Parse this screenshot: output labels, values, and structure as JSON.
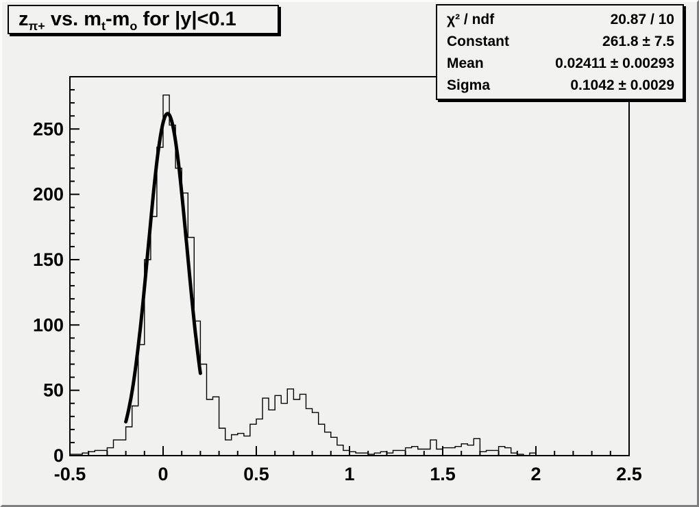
{
  "colors": {
    "canvas_bg": "#f1f1ef",
    "pave_bg": "#f2f2f0",
    "line": "#000000",
    "shadow": "#000000"
  },
  "title": {
    "plain": "z_pi+ vs. m_t-m_o for |y|<0.1",
    "segments": [
      {
        "t": "z"
      },
      {
        "t": "π+",
        "sub": true
      },
      {
        "t": " vs. m"
      },
      {
        "t": "t",
        "sub": true
      },
      {
        "t": "-m"
      },
      {
        "t": "o",
        "sub": true
      },
      {
        "t": " for |y|<0.1"
      }
    ]
  },
  "stats": {
    "rows": [
      {
        "label": "χ² / ndf",
        "value": "20.87 / 10"
      },
      {
        "label": "Constant",
        "value": "261.8 ± 7.5"
      },
      {
        "label": "Mean",
        "value": "0.02411 ± 0.00293"
      },
      {
        "label": "Sigma",
        "value": "0.1042 ± 0.0029"
      }
    ]
  },
  "chart_data": {
    "type": "bar",
    "subtype": "histogram-step-outline",
    "title": "z_pi+ vs. m_t-m_o for |y|<0.1",
    "xlabel": "",
    "ylabel": "",
    "grid": false,
    "legend_position": "stats box, top right",
    "x_axis": {
      "min": -0.5,
      "max": 2.5,
      "major_ticks": [
        -0.5,
        0,
        0.5,
        1,
        1.5,
        2,
        2.5
      ],
      "tick_labels": [
        "-0.5",
        "0",
        "0.5",
        "1",
        "1.5",
        "2",
        "2.5"
      ],
      "minor_divisions_per_major": 5
    },
    "y_axis": {
      "min": 0,
      "max": 290,
      "major_ticks": [
        0,
        50,
        100,
        150,
        200,
        250
      ],
      "tick_labels": [
        "0",
        "50",
        "100",
        "150",
        "200",
        "250"
      ],
      "minor_divisions_per_major": 5
    },
    "histogram": {
      "x_start": -0.5,
      "bin_width": 0.033333,
      "n_bins": 90,
      "values": [
        1,
        1,
        2,
        3,
        4,
        4,
        6,
        12,
        12,
        22,
        38,
        85,
        150,
        183,
        236,
        276,
        253,
        220,
        201,
        167,
        103,
        70,
        43,
        45,
        21,
        12,
        16,
        17,
        15,
        24,
        28,
        44,
        35,
        46,
        40,
        51,
        43,
        47,
        36,
        33,
        24,
        18,
        14,
        8,
        4,
        3,
        2,
        2,
        1,
        2,
        3,
        2,
        4,
        4,
        6,
        7,
        5,
        5,
        12,
        5,
        6,
        6,
        7,
        9,
        8,
        13,
        3,
        4,
        4,
        7,
        6,
        2,
        1,
        0,
        2,
        0,
        0,
        0,
        0,
        0,
        0,
        0,
        0,
        0,
        0,
        0,
        0,
        0,
        0,
        0
      ]
    },
    "fit": {
      "shape": "gaussian",
      "chi2": 20.87,
      "ndf": 10,
      "constant": 261.8,
      "constant_err": 7.5,
      "mean": 0.02411,
      "mean_err": 0.00293,
      "sigma": 0.1042,
      "sigma_err": 0.0029,
      "draw_range": [
        -0.2,
        0.2
      ]
    }
  }
}
